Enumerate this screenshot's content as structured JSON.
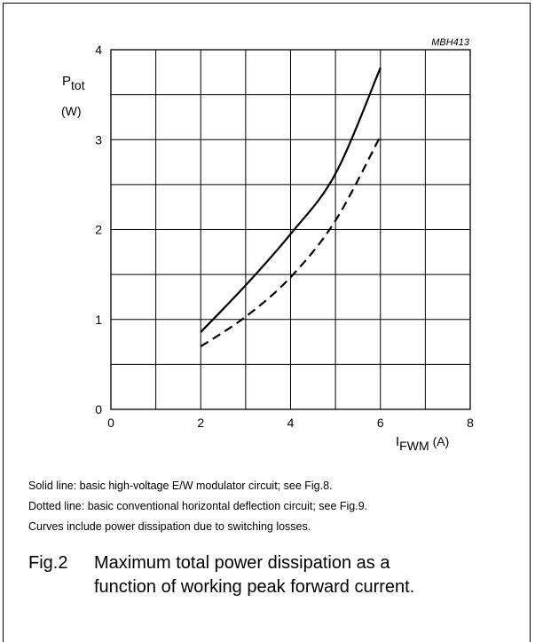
{
  "chart_data": {
    "type": "line",
    "id_label": "MBH413",
    "y_axis": {
      "label_main": "P",
      "label_sub": "tot",
      "unit": "(W)",
      "range": [
        0,
        4
      ],
      "ticks": [
        "0",
        "1",
        "2",
        "3",
        "4"
      ]
    },
    "x_axis": {
      "label_main": "I",
      "label_sub": "FWM",
      "unit": "(A)",
      "range": [
        0,
        8
      ],
      "ticks": [
        "0",
        "2",
        "4",
        "6",
        "8"
      ]
    },
    "grid": true,
    "series": [
      {
        "style": "solid",
        "x": [
          2.0,
          3.0,
          4.0,
          5.0,
          6.0
        ],
        "y": [
          0.86,
          1.38,
          1.95,
          2.62,
          3.8
        ]
      },
      {
        "style": "dashed",
        "x": [
          2.0,
          3.0,
          4.0,
          5.0,
          6.0
        ],
        "y": [
          0.7,
          1.03,
          1.47,
          2.1,
          3.04
        ]
      }
    ]
  },
  "notes": [
    "Solid line: basic high-voltage E/W modulator circuit; see Fig.8.",
    "Dotted line: basic conventional horizontal deflection circuit; see Fig.9.",
    "Curves include power dissipation due to switching losses."
  ],
  "caption": {
    "number": "Fig.2",
    "line1": "Maximum total power dissipation as a",
    "line2": "function of working peak forward current."
  }
}
